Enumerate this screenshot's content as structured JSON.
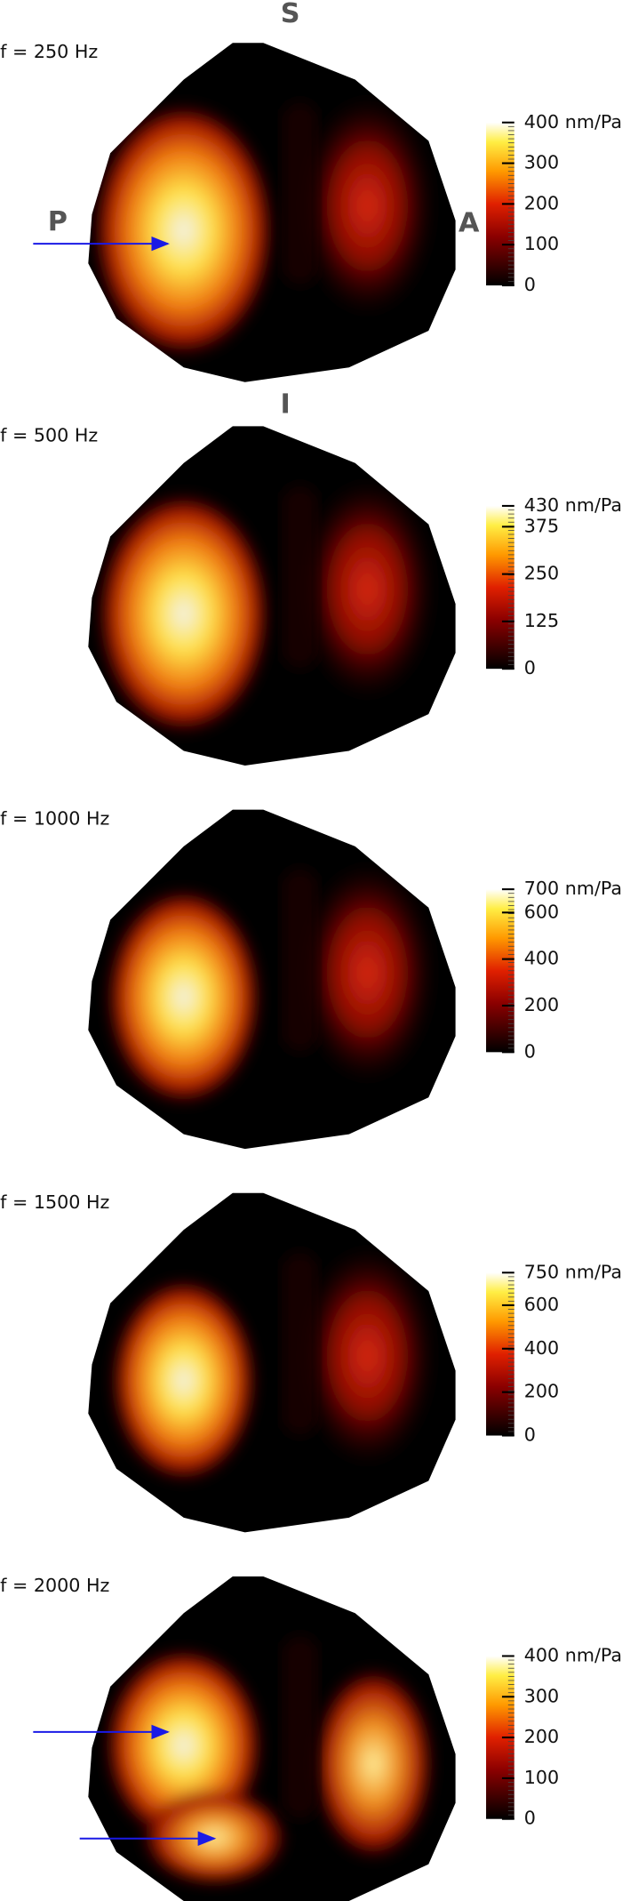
{
  "orientation": {
    "superior": "S",
    "inferior": "I",
    "posterior": "P",
    "anterior": "A"
  },
  "panels": [
    {
      "frequency_label": "f = 250 Hz",
      "colorbar": {
        "clim": [
          0,
          400
        ],
        "ticks": [
          0,
          100,
          200,
          300,
          {
            "value": 400,
            "label": "400 nm/Pa"
          }
        ]
      }
    },
    {
      "frequency_label": "f = 500 Hz",
      "colorbar": {
        "clim": [
          0,
          430
        ],
        "ticks": [
          0,
          125,
          250,
          375,
          {
            "value": 430,
            "label": "430 nm/Pa"
          }
        ]
      }
    },
    {
      "frequency_label": "f = 1000 Hz",
      "colorbar": {
        "clim": [
          0,
          700
        ],
        "ticks": [
          0,
          200,
          400,
          600,
          {
            "value": 700,
            "label": "700 nm/Pa"
          }
        ]
      }
    },
    {
      "frequency_label": "f = 1500 Hz",
      "colorbar": {
        "clim": [
          0,
          750
        ],
        "ticks": [
          0,
          200,
          400,
          600,
          {
            "value": 750,
            "label": "750 nm/Pa"
          }
        ]
      }
    },
    {
      "frequency_label": "f = 2000 Hz",
      "colorbar": {
        "clim": [
          0,
          400
        ],
        "ticks": [
          0,
          100,
          200,
          300,
          {
            "value": 400,
            "label": "400 nm/Pa"
          }
        ]
      }
    }
  ]
}
